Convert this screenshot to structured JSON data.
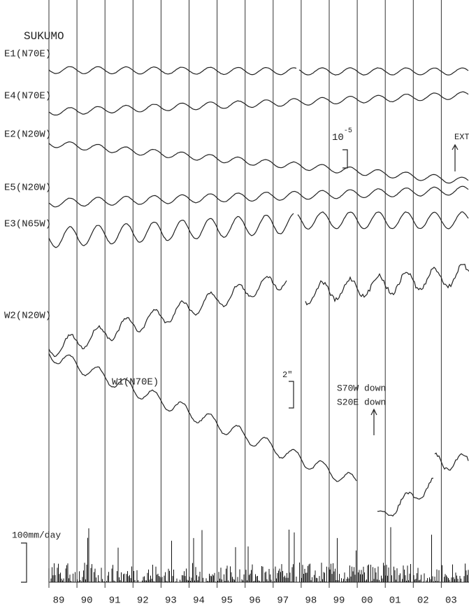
{
  "title": "SUKUMO",
  "traces": [
    "E1(N70E)",
    "E4(N70E)",
    "E2(N20W)",
    "E5(N20W)",
    "E3(N65W)",
    "W2(N20W)",
    "W1(N70E)"
  ],
  "strain_scale": {
    "base": "10",
    "exponent": "-5"
  },
  "ext_label": "EXT",
  "tilt_scale": "2\"",
  "tilt_notes": [
    "S70W down",
    "S20E down"
  ],
  "rain_scale": "100mm/day",
  "years": [
    "89",
    "90",
    "91",
    "92",
    "93",
    "94",
    "95",
    "96",
    "97",
    "98",
    "99",
    "00",
    "01",
    "02",
    "03"
  ]
}
